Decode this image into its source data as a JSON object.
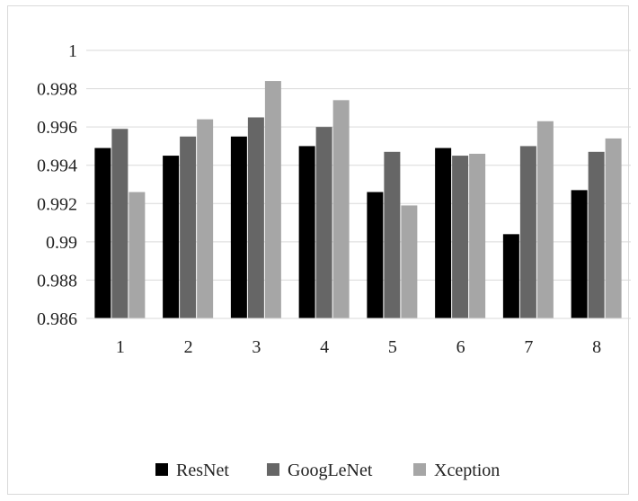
{
  "chart_data": {
    "type": "bar",
    "title": "",
    "xlabel": "",
    "ylabel": "",
    "categories": [
      "1",
      "2",
      "3",
      "4",
      "5",
      "6",
      "7",
      "8"
    ],
    "ylim": [
      0.986,
      1
    ],
    "yticks": [
      0.986,
      0.988,
      0.99,
      0.992,
      0.994,
      0.996,
      0.998,
      1
    ],
    "ytick_labels": [
      "0.986",
      "0.988",
      "0.99",
      "0.992",
      "0.994",
      "0.996",
      "0.998",
      "1"
    ],
    "grid": true,
    "legend_position": "bottom",
    "series": [
      {
        "name": "ResNet",
        "color": "#000000",
        "values": [
          0.9949,
          0.9945,
          0.9955,
          0.995,
          0.9926,
          0.9949,
          0.9904,
          0.9927
        ]
      },
      {
        "name": "GoogLeNet",
        "color": "#666666",
        "values": [
          0.9959,
          0.9955,
          0.9965,
          0.996,
          0.9947,
          0.9945,
          0.995,
          0.9947
        ]
      },
      {
        "name": "Xception",
        "color": "#a6a6a6",
        "values": [
          0.9926,
          0.9964,
          0.9984,
          0.9974,
          0.9919,
          0.9946,
          0.9963,
          0.9954
        ]
      }
    ]
  }
}
